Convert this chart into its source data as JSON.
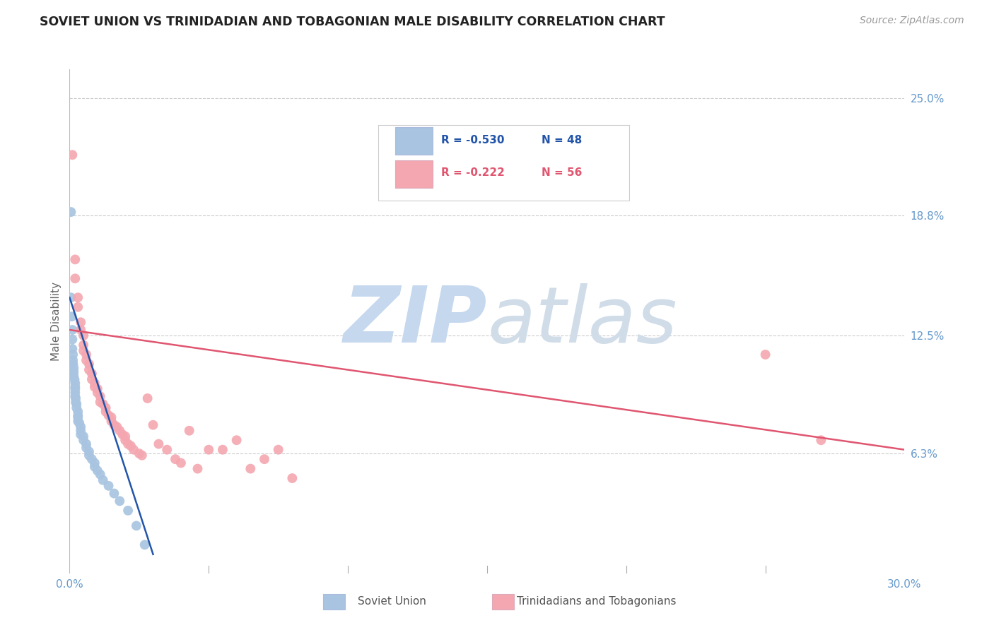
{
  "title": "SOVIET UNION VS TRINIDADIAN AND TOBAGONIAN MALE DISABILITY CORRELATION CHART",
  "source": "Source: ZipAtlas.com",
  "ylabel": "Male Disability",
  "xmin": 0.0,
  "xmax": 0.3,
  "ymin": 0.0,
  "ymax": 0.265,
  "color_soviet": "#a8c4e0",
  "color_trinidadian": "#f4a7b0",
  "color_line_soviet": "#2255aa",
  "color_line_trinidadian": "#e05570",
  "color_axis_labels": "#6699cc",
  "watermark_ZIP_color": "#c8d8ee",
  "watermark_atlas_color": "#c8d8ee",
  "background_color": "#ffffff",
  "legend_R1": "R = -0.530",
  "legend_N1": "N = 48",
  "legend_R2": "R = -0.222",
  "legend_N2": "N = 56",
  "soviet_x": [
    0.0005,
    0.0005,
    0.0008,
    0.001,
    0.001,
    0.001,
    0.0012,
    0.0012,
    0.0013,
    0.0015,
    0.0015,
    0.0015,
    0.0018,
    0.002,
    0.002,
    0.002,
    0.002,
    0.002,
    0.0022,
    0.0022,
    0.0025,
    0.0025,
    0.003,
    0.003,
    0.003,
    0.003,
    0.0035,
    0.004,
    0.004,
    0.004,
    0.005,
    0.005,
    0.006,
    0.006,
    0.007,
    0.007,
    0.008,
    0.009,
    0.009,
    0.01,
    0.011,
    0.012,
    0.014,
    0.016,
    0.018,
    0.021,
    0.024,
    0.027
  ],
  "soviet_y": [
    0.19,
    0.145,
    0.135,
    0.128,
    0.123,
    0.118,
    0.115,
    0.112,
    0.11,
    0.108,
    0.106,
    0.104,
    0.102,
    0.1,
    0.098,
    0.097,
    0.095,
    0.093,
    0.092,
    0.09,
    0.089,
    0.087,
    0.085,
    0.083,
    0.082,
    0.08,
    0.079,
    0.077,
    0.075,
    0.073,
    0.072,
    0.07,
    0.068,
    0.066,
    0.064,
    0.062,
    0.06,
    0.058,
    0.056,
    0.054,
    0.052,
    0.049,
    0.046,
    0.042,
    0.038,
    0.033,
    0.025,
    0.015
  ],
  "trinidadian_x": [
    0.001,
    0.002,
    0.002,
    0.003,
    0.003,
    0.004,
    0.004,
    0.005,
    0.005,
    0.005,
    0.006,
    0.006,
    0.007,
    0.007,
    0.008,
    0.008,
    0.009,
    0.009,
    0.01,
    0.01,
    0.011,
    0.011,
    0.012,
    0.013,
    0.013,
    0.014,
    0.015,
    0.015,
    0.016,
    0.017,
    0.018,
    0.019,
    0.02,
    0.02,
    0.021,
    0.022,
    0.023,
    0.025,
    0.026,
    0.028,
    0.03,
    0.032,
    0.035,
    0.038,
    0.04,
    0.043,
    0.046,
    0.05,
    0.055,
    0.06,
    0.065,
    0.07,
    0.075,
    0.08,
    0.25,
    0.27
  ],
  "trinidadian_y": [
    0.22,
    0.165,
    0.155,
    0.145,
    0.14,
    0.132,
    0.128,
    0.125,
    0.12,
    0.117,
    0.115,
    0.112,
    0.11,
    0.107,
    0.105,
    0.102,
    0.1,
    0.098,
    0.097,
    0.095,
    0.093,
    0.09,
    0.089,
    0.087,
    0.085,
    0.083,
    0.082,
    0.08,
    0.078,
    0.077,
    0.075,
    0.073,
    0.072,
    0.07,
    0.068,
    0.067,
    0.065,
    0.063,
    0.062,
    0.092,
    0.078,
    0.068,
    0.065,
    0.06,
    0.058,
    0.075,
    0.055,
    0.065,
    0.065,
    0.07,
    0.055,
    0.06,
    0.065,
    0.05,
    0.115,
    0.07
  ],
  "soviet_line_x": [
    0.0,
    0.03
  ],
  "soviet_line_y": [
    0.145,
    0.01
  ],
  "trinidadian_line_x": [
    0.0,
    0.3
  ],
  "trinidadian_line_y": [
    0.128,
    0.065
  ]
}
